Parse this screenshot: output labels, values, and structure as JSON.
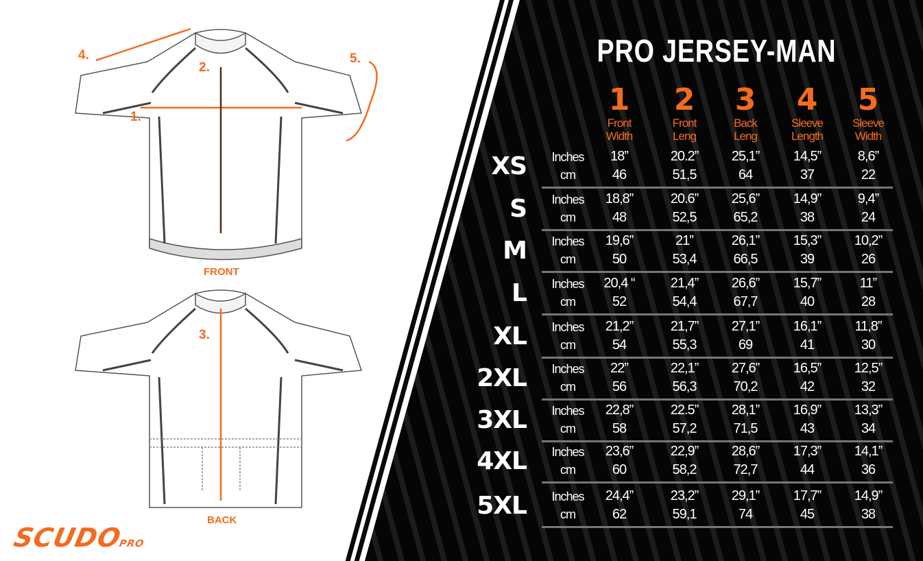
{
  "title": "PRO JERSEY-MAN",
  "brand": {
    "name": "SCUDO",
    "suffix": "PRO",
    "color": "#f46b1e"
  },
  "diagram": {
    "front_label": "FRONT",
    "back_label": "BACK",
    "markers": [
      "1.",
      "2.",
      "3.",
      "4.",
      "5."
    ]
  },
  "columns": [
    {
      "num": "1",
      "label1": "Front",
      "label2": "Width"
    },
    {
      "num": "2",
      "label1": "Front",
      "label2": "Leng"
    },
    {
      "num": "3",
      "label1": "Back",
      "label2": "Leng"
    },
    {
      "num": "4",
      "label1": "Sleeve",
      "label2": "Length"
    },
    {
      "num": "5",
      "label1": "Sleeve",
      "label2": "Width"
    }
  ],
  "units": {
    "inches": "Inches",
    "cm": "cm"
  },
  "rows": [
    {
      "size": "XS",
      "inches": [
        "18”",
        "20.2”",
        "25,1”",
        "14,5”",
        "8,6”"
      ],
      "cm": [
        "46",
        "51,5",
        "64",
        "37",
        "22"
      ]
    },
    {
      "size": "S",
      "inches": [
        "18,8”",
        "20.6”",
        "25,6”",
        "14,9”",
        "9,4”"
      ],
      "cm": [
        "48",
        "52,5",
        "65,2",
        "38",
        "24"
      ]
    },
    {
      "size": "M",
      "inches": [
        "19,6”",
        "21”",
        "26,1”",
        "15,3”",
        "10,2”"
      ],
      "cm": [
        "50",
        "53,4",
        "66,5",
        "39",
        "26"
      ]
    },
    {
      "size": "L",
      "inches": [
        "20,4 “",
        "21,4”",
        "26,6”",
        "15,7”",
        "11”"
      ],
      "cm": [
        "52",
        "54,4",
        "67,7",
        "40",
        "28"
      ]
    },
    {
      "size": "XL",
      "inches": [
        "21,2”",
        "21,7”",
        "27,1”",
        "16,1”",
        "11,8”"
      ],
      "cm": [
        "54",
        "55,3",
        "69",
        "41",
        "30"
      ]
    },
    {
      "size": "2XL",
      "inches": [
        "22”",
        "22,1”",
        "27,6”",
        "16,5”",
        "12,5”"
      ],
      "cm": [
        "56",
        "56,3",
        "70,2",
        "42",
        "32"
      ]
    },
    {
      "size": "3XL",
      "inches": [
        "22,8”",
        "22.5”",
        "28,1”",
        "16,9”",
        "13,3”"
      ],
      "cm": [
        "58",
        "57,2",
        "71,5",
        "43",
        "34"
      ]
    },
    {
      "size": "4XL",
      "inches": [
        "23,6”",
        "22,9”",
        "28,6”",
        "17,3”",
        "14,1”"
      ],
      "cm": [
        "60",
        "58,2",
        "72,7",
        "44",
        "36"
      ]
    },
    {
      "size": "5XL",
      "inches": [
        "24,4”",
        "23,2”",
        "29,1”",
        "17,7”",
        "14,9”"
      ],
      "cm": [
        "62",
        "59,1",
        "74",
        "45",
        "38"
      ]
    }
  ]
}
